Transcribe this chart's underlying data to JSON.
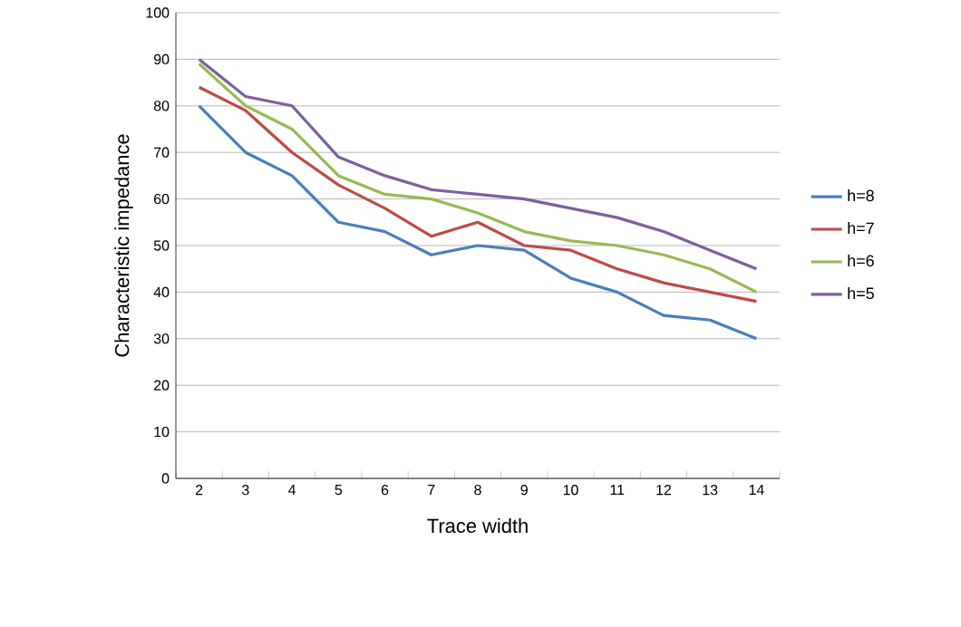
{
  "chart_data": {
    "type": "line",
    "xlabel": "Trace width",
    "ylabel": "Characteristic impedance",
    "categories": [
      "2",
      "3",
      "4",
      "5",
      "6",
      "7",
      "8",
      "9",
      "10",
      "11",
      "12",
      "13",
      "14"
    ],
    "ylim": [
      0,
      100
    ],
    "yticks": [
      0,
      10,
      20,
      30,
      40,
      50,
      60,
      70,
      80,
      90,
      100
    ],
    "grid": "y",
    "legend": "right",
    "marker": "none",
    "line_style": "solid",
    "series": [
      {
        "name": "h=8",
        "color": "#4a7ebb",
        "values": [
          80,
          70,
          65,
          55,
          53,
          48,
          50,
          49,
          43,
          40,
          35,
          34,
          30
        ]
      },
      {
        "name": "h=7",
        "color": "#be4b48",
        "values": [
          84,
          79,
          70,
          63,
          58,
          52,
          55,
          50,
          49,
          45,
          42,
          40,
          38
        ]
      },
      {
        "name": "h=6",
        "color": "#98b954",
        "values": [
          89,
          80,
          75,
          65,
          61,
          60,
          57,
          53,
          51,
          50,
          48,
          45,
          40
        ]
      },
      {
        "name": "h=5",
        "color": "#7d60a0",
        "values": [
          90,
          82,
          80,
          69,
          65,
          62,
          61,
          60,
          58,
          56,
          53,
          49,
          45
        ]
      }
    ]
  }
}
